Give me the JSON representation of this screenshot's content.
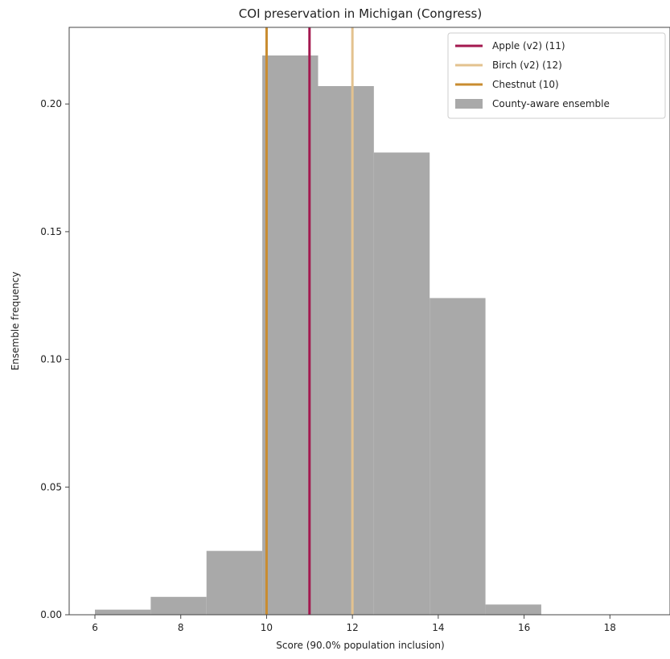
{
  "chart_data": {
    "type": "bar",
    "title": "COI preservation in Michigan (Congress)",
    "xlabel": "Score (90.0% population inclusion)",
    "ylabel": "Ensemble frequency",
    "xlim": [
      5.4,
      19.4
    ],
    "ylim": [
      0,
      0.23
    ],
    "xticks": [
      "6",
      "8",
      "10",
      "12",
      "14",
      "16",
      "18"
    ],
    "yticks": [
      "0.00",
      "0.05",
      "0.10",
      "0.15",
      "0.20"
    ],
    "grid": false,
    "legend_position": "top-right",
    "histogram": {
      "name": "County-aware ensemble",
      "color": "#a9a9a9",
      "bins": [
        {
          "start": 6.0,
          "end": 7.3,
          "value": 0.002
        },
        {
          "start": 7.3,
          "end": 8.6,
          "value": 0.007
        },
        {
          "start": 8.6,
          "end": 9.9,
          "value": 0.025
        },
        {
          "start": 9.9,
          "end": 11.2,
          "value": 0.219
        },
        {
          "start": 11.2,
          "end": 12.5,
          "value": 0.207
        },
        {
          "start": 12.5,
          "end": 13.8,
          "value": 0.181
        },
        {
          "start": 13.8,
          "end": 15.1,
          "value": 0.124
        },
        {
          "start": 15.1,
          "end": 16.4,
          "value": 0.004
        }
      ]
    },
    "vlines": [
      {
        "name": "Apple (v2) (11)",
        "x": 11,
        "color": "#a3184f"
      },
      {
        "name": "Birch (v2) (12)",
        "x": 12,
        "color": "#e3c28f"
      },
      {
        "name": "Chestnut (10)",
        "x": 10,
        "color": "#c98c30"
      }
    ]
  }
}
